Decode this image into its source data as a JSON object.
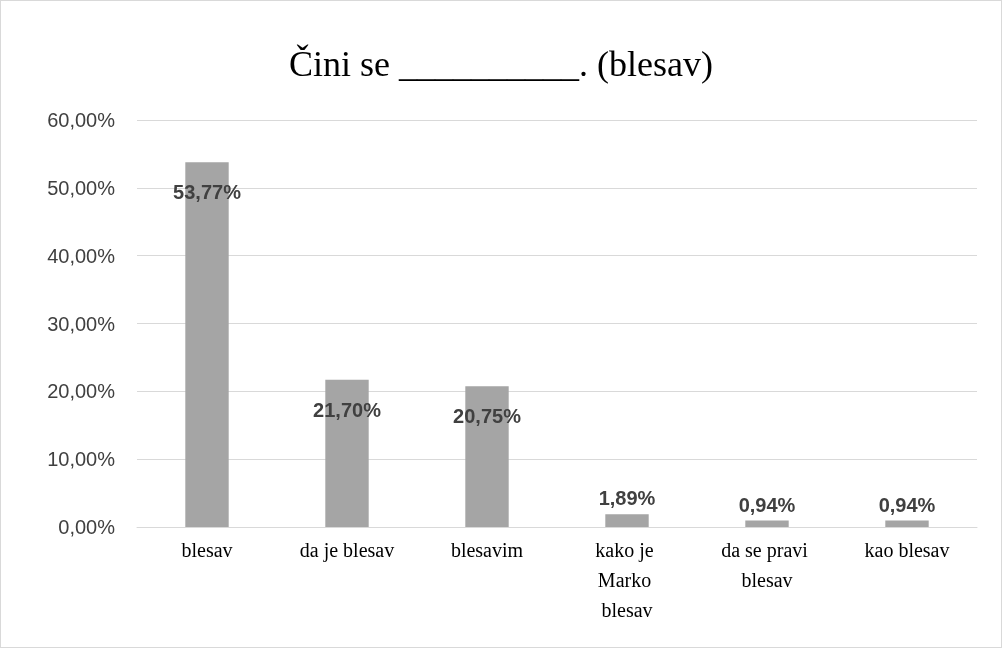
{
  "chart_data": {
    "type": "bar",
    "title": "Čini se __________. (blesav)",
    "categories": [
      "blesav",
      "da je blesav",
      "blesavim",
      "kako je Marko blesav",
      "da se pravi blesav",
      "kao blesav"
    ],
    "values": [
      53.77,
      21.7,
      20.75,
      1.89,
      0.94,
      0.94
    ],
    "color": "#a5a5a5",
    "value_labels": [
      "53,77%",
      "21,70%",
      "20,75%",
      "1,89%",
      "0,94%",
      "0,94%"
    ],
    "ylim": [
      0,
      60
    ],
    "yticks": [
      {
        "value": 0,
        "label": "0,00%"
      },
      {
        "value": 10,
        "label": "10,00%"
      },
      {
        "value": 20,
        "label": "20,00%"
      },
      {
        "value": 30,
        "label": "30,00%"
      },
      {
        "value": 40,
        "label": "40,00%"
      },
      {
        "value": 50,
        "label": "50,00%"
      },
      {
        "value": 60,
        "label": "60,00%"
      }
    ],
    "grid": "y"
  }
}
